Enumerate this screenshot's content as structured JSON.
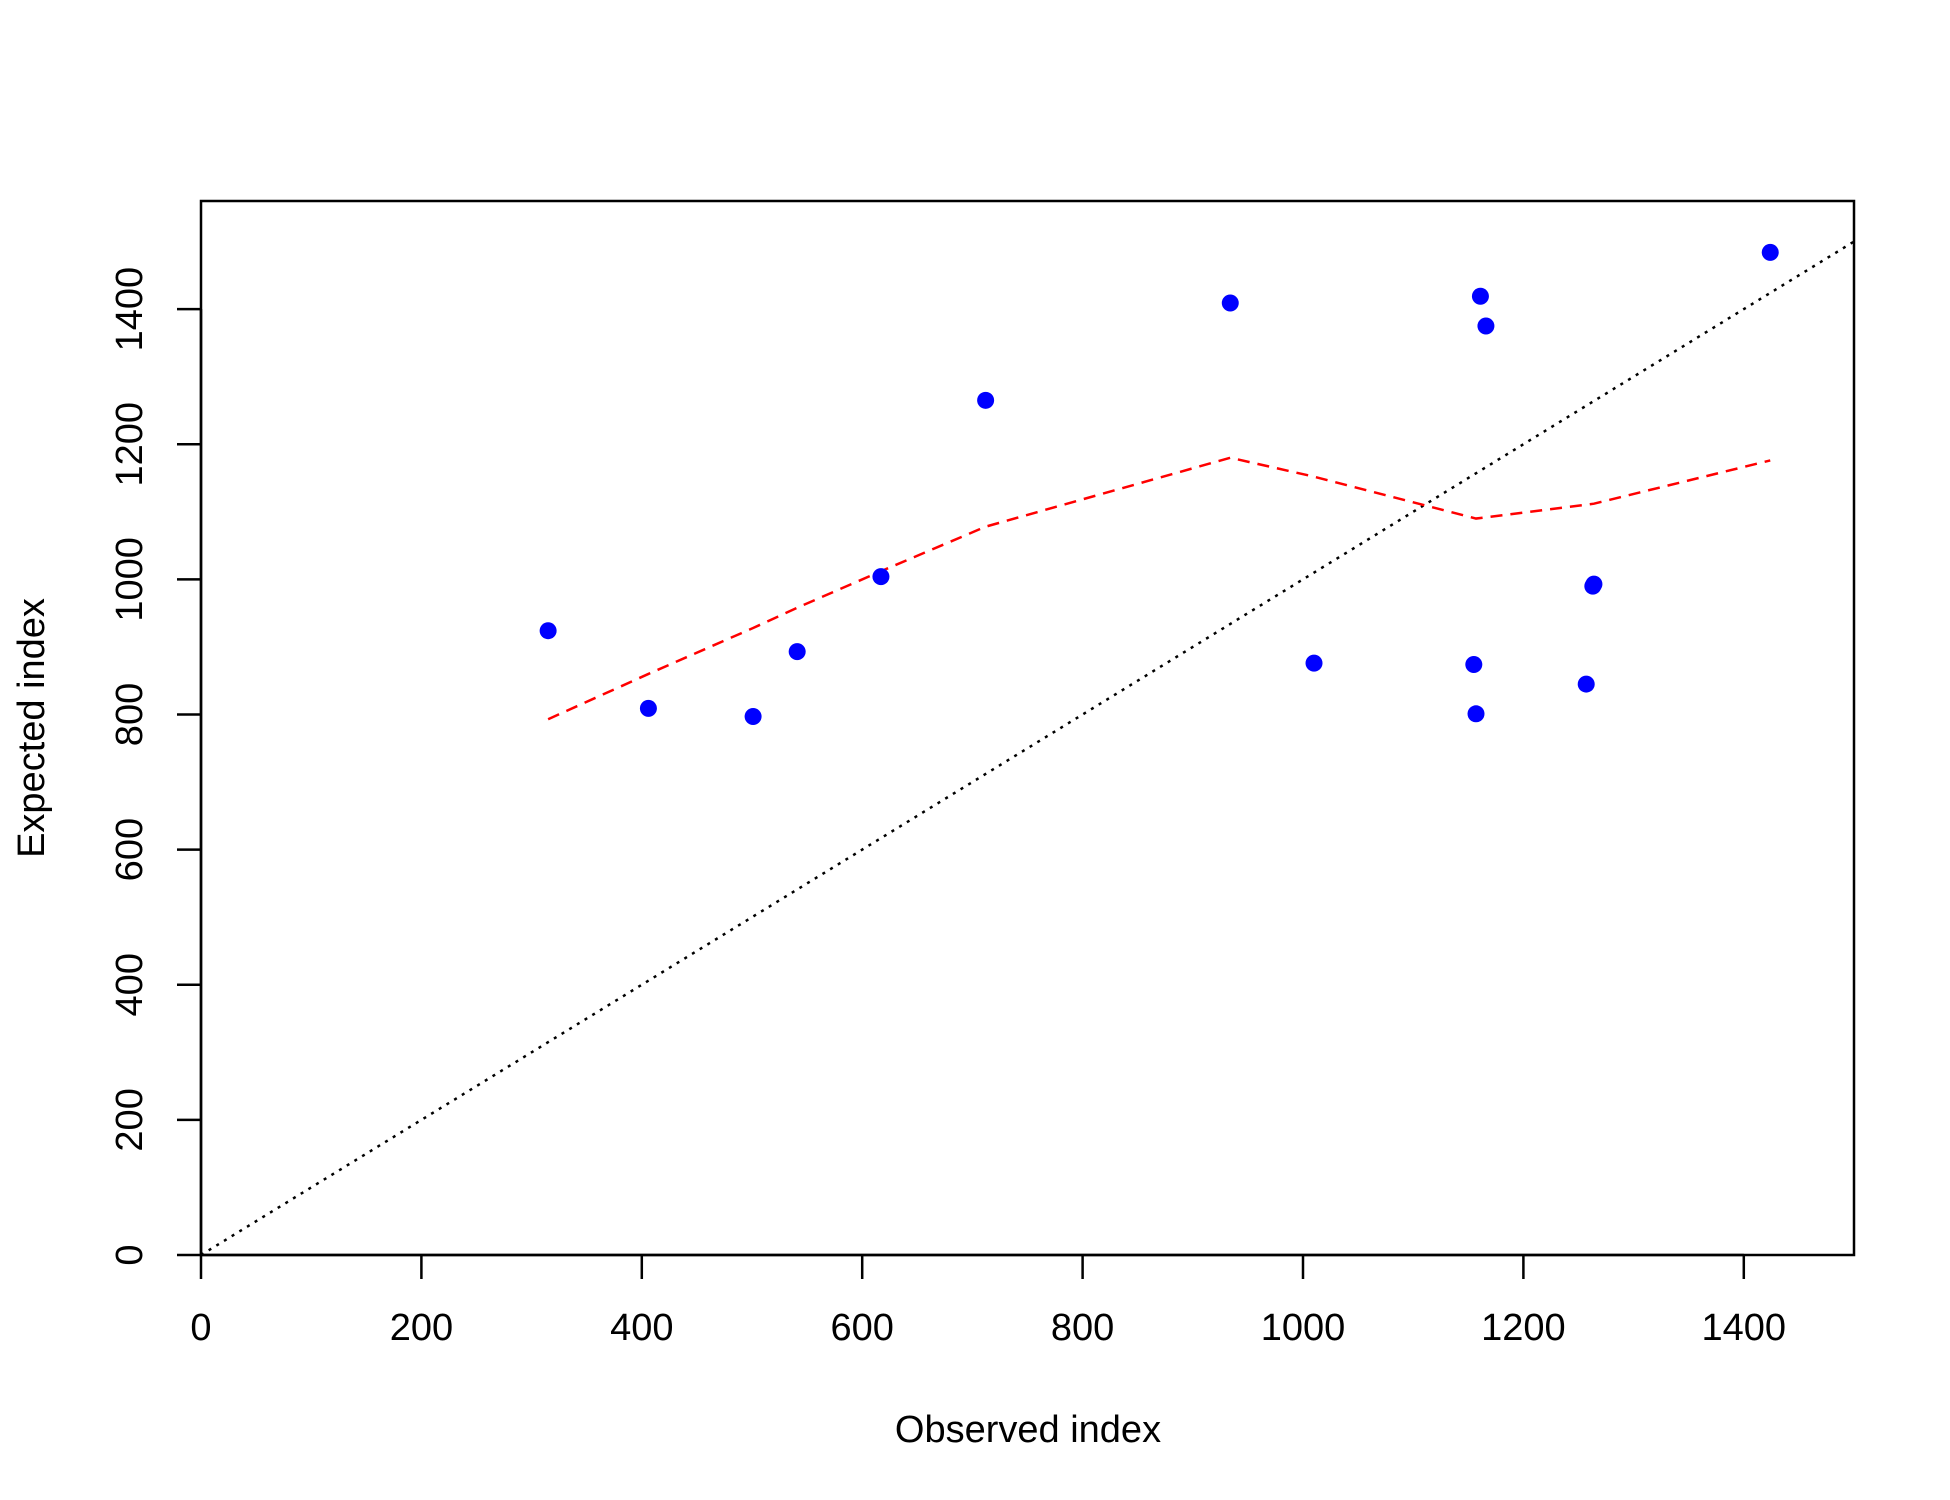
{
  "chart_data": {
    "type": "scatter",
    "title": "",
    "xlabel": "Observed index",
    "ylabel": "Expected index",
    "xlim": [
      0,
      1500
    ],
    "ylim": [
      0,
      1560
    ],
    "x_ticks": [
      "0",
      "200",
      "400",
      "600",
      "800",
      "1000",
      "1200",
      "1400"
    ],
    "y_ticks": [
      "0",
      "200",
      "400",
      "600",
      "800",
      "1000",
      "1200",
      "1400"
    ],
    "grid": false,
    "legend": "none",
    "points": {
      "color": "#0000ff",
      "x": [
        315,
        406,
        501,
        541,
        617,
        712,
        934,
        1010,
        1155,
        1157,
        1161,
        1166,
        1257,
        1263,
        1264,
        1424
      ],
      "y": [
        924,
        809,
        797,
        893,
        1004,
        1265,
        1409,
        876,
        874,
        801,
        1419,
        1375,
        845,
        990,
        993,
        1484
      ]
    },
    "smooth_line": {
      "color": "#ff0000",
      "style": "dashed",
      "x": [
        315,
        406,
        501,
        541,
        617,
        712,
        934,
        1010,
        1157,
        1264,
        1424
      ],
      "y": [
        793,
        860,
        928,
        958,
        1012,
        1078,
        1180,
        1152,
        1090,
        1112,
        1176
      ]
    },
    "reference_line": {
      "color": "#000000",
      "style": "dotted",
      "x": [
        0,
        1500
      ],
      "y": [
        0,
        1500
      ]
    }
  }
}
